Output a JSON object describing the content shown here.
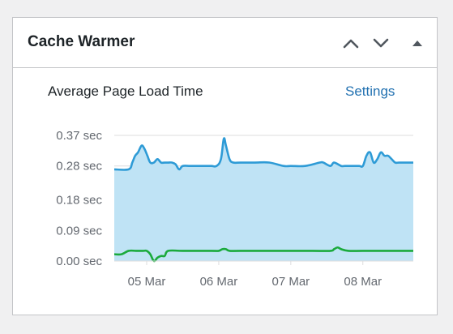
{
  "widget": {
    "title": "Cache Warmer",
    "controls": {
      "move_up": "chevron-up-icon",
      "move_down": "chevron-down-icon",
      "toggle": "triangle-up-icon"
    }
  },
  "body": {
    "label": "Average Page Load Time",
    "settings_label": "Settings"
  },
  "colors": {
    "series_page_load": "#2e9bd6",
    "series_page_load_fill": "#bfe3f5",
    "series_secondary": "#1aaa3c",
    "grid": "#dcdcde",
    "link": "#2271b1"
  },
  "chart_data": {
    "type": "line",
    "title": "",
    "xlabel": "",
    "ylabel": "",
    "y_ticks": [
      "0.00 sec",
      "0.09 sec",
      "0.18 sec",
      "0.28 sec",
      "0.37 sec"
    ],
    "y_tick_values": [
      0.0,
      0.09,
      0.18,
      0.28,
      0.37
    ],
    "ylim": [
      0,
      0.37
    ],
    "x_ticks": [
      "05 Mar",
      "06 Mar",
      "07 Mar",
      "08 Mar"
    ],
    "x_tick_values": [
      1,
      2,
      3,
      4
    ],
    "xlim": [
      0.55,
      4.7
    ],
    "grid": true,
    "legend": "none",
    "series": [
      {
        "fill": true,
        "x": [
          0.55,
          0.75,
          0.8,
          0.84,
          0.88,
          0.93,
          0.97,
          1.01,
          1.05,
          1.1,
          1.15,
          1.2,
          1.25,
          1.3,
          1.35,
          1.4,
          1.45,
          1.5,
          1.6,
          1.7,
          1.8,
          1.9,
          1.97,
          2.03,
          2.07,
          2.1,
          2.15,
          2.2,
          2.3,
          2.5,
          2.7,
          2.9,
          3.0,
          3.2,
          3.4,
          3.45,
          3.55,
          3.6,
          3.7,
          3.75,
          3.85,
          3.95,
          4.0,
          4.05,
          4.1,
          4.15,
          4.2,
          4.25,
          4.3,
          4.35,
          4.4,
          4.45,
          4.5,
          4.6,
          4.7
        ],
        "y": [
          0.27,
          0.27,
          0.29,
          0.31,
          0.32,
          0.34,
          0.33,
          0.31,
          0.29,
          0.29,
          0.3,
          0.29,
          0.29,
          0.29,
          0.29,
          0.285,
          0.27,
          0.28,
          0.28,
          0.28,
          0.28,
          0.28,
          0.28,
          0.3,
          0.36,
          0.34,
          0.3,
          0.29,
          0.29,
          0.29,
          0.29,
          0.28,
          0.28,
          0.28,
          0.29,
          0.29,
          0.28,
          0.29,
          0.28,
          0.28,
          0.28,
          0.28,
          0.28,
          0.31,
          0.32,
          0.29,
          0.3,
          0.32,
          0.31,
          0.31,
          0.3,
          0.29,
          0.29,
          0.29,
          0.29
        ]
      },
      {
        "fill": false,
        "x": [
          0.55,
          0.65,
          0.75,
          0.85,
          0.95,
          1.0,
          1.05,
          1.1,
          1.15,
          1.2,
          1.25,
          1.3,
          1.5,
          1.9,
          2.0,
          2.05,
          2.1,
          2.15,
          2.3,
          2.7,
          3.0,
          3.3,
          3.55,
          3.6,
          3.65,
          3.7,
          3.8,
          4.0,
          4.3,
          4.7
        ],
        "y": [
          0.02,
          0.02,
          0.03,
          0.03,
          0.03,
          0.03,
          0.02,
          0.0,
          0.01,
          0.015,
          0.015,
          0.03,
          0.03,
          0.03,
          0.03,
          0.035,
          0.035,
          0.03,
          0.03,
          0.03,
          0.03,
          0.03,
          0.03,
          0.035,
          0.04,
          0.035,
          0.03,
          0.03,
          0.03,
          0.03
        ]
      }
    ]
  }
}
